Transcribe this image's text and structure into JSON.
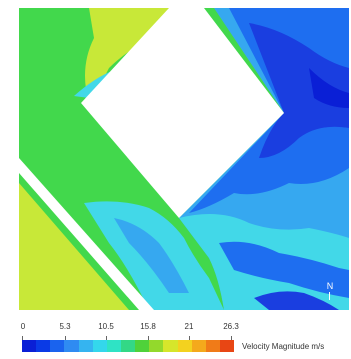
{
  "legend": {
    "title": "Velocity Magnitude m/s",
    "ticks": [
      "0",
      "5.3",
      "10.5",
      "15.8",
      "21",
      "26.3"
    ],
    "colors": [
      "#0a1fd6",
      "#0a3ae6",
      "#1a63ee",
      "#2f8bf2",
      "#35b4f0",
      "#34d7ec",
      "#2fe3c5",
      "#33d886",
      "#4fd23a",
      "#93d92c",
      "#d6e62b",
      "#f3d21f",
      "#f4a91c",
      "#f07b18",
      "#e84614"
    ]
  },
  "north": {
    "label": "N"
  },
  "colors": {
    "green": "#42d84c",
    "yellow_green": "#c8e838",
    "cyan": "#42d8e8",
    "light_blue": "#36a8f0",
    "blue": "#1e6ef0",
    "dark_blue": "#1a3ee0"
  }
}
